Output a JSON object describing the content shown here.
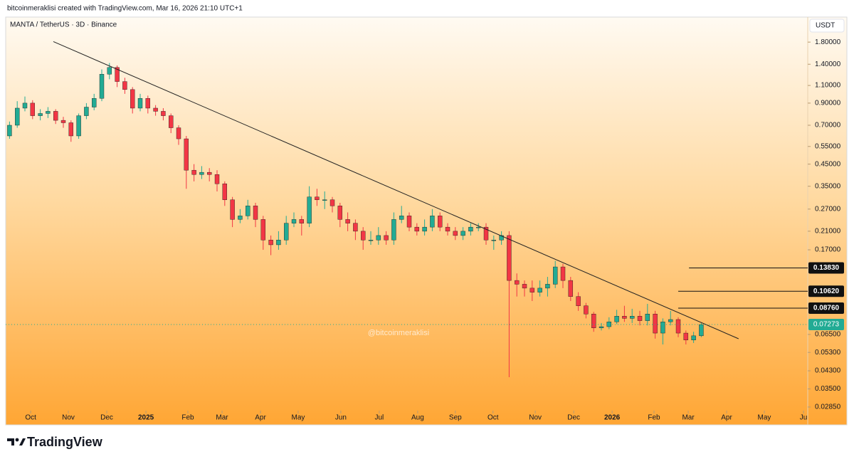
{
  "chart_data": {
    "type": "candlestick",
    "credit": "bitcoinmeraklisi created with TradingView.com, Mar 16, 2026 21:10 UTC+1",
    "title": "MANTA / TetherUS · 3D · Binance",
    "currency": "USDT",
    "watermark": "@bitcoinmeraklisi",
    "brand": "TradingView",
    "log_scale": true,
    "up_color": "#22ab94",
    "down_color": "#f23645",
    "ylim": [
      0.0278,
      1.97
    ],
    "yticks": [
      {
        "value": 1.8,
        "label": "1.80000"
      },
      {
        "value": 1.4,
        "label": "1.40000"
      },
      {
        "value": 1.1,
        "label": "1.10000"
      },
      {
        "value": 0.9,
        "label": "0.90000"
      },
      {
        "value": 0.7,
        "label": "0.70000"
      },
      {
        "value": 0.55,
        "label": "0.55000"
      },
      {
        "value": 0.45,
        "label": "0.45000"
      },
      {
        "value": 0.35,
        "label": "0.35000"
      },
      {
        "value": 0.27,
        "label": "0.27000"
      },
      {
        "value": 0.21,
        "label": "0.21000"
      },
      {
        "value": 0.17,
        "label": "0.17000"
      },
      {
        "value": 0.065,
        "label": "0.06500"
      },
      {
        "value": 0.053,
        "label": "0.05300"
      },
      {
        "value": 0.043,
        "label": "0.04300"
      },
      {
        "value": 0.035,
        "label": "0.03500"
      },
      {
        "value": 0.0285,
        "label": "0.02850"
      }
    ],
    "xlim": [
      0,
      208.7
    ],
    "xticks": [
      {
        "value": 6.5,
        "label": "Oct"
      },
      {
        "value": 16.3,
        "label": "Nov"
      },
      {
        "value": 26.3,
        "label": "Dec"
      },
      {
        "value": 36.5,
        "label": "2025"
      },
      {
        "value": 47.4,
        "label": "Feb"
      },
      {
        "value": 56.3,
        "label": "Mar"
      },
      {
        "value": 66.3,
        "label": "Apr"
      },
      {
        "value": 76.1,
        "label": "May"
      },
      {
        "value": 87.2,
        "label": "Jun"
      },
      {
        "value": 97.2,
        "label": "Jul"
      },
      {
        "value": 107.2,
        "label": "Aug"
      },
      {
        "value": 117,
        "label": "Sep"
      },
      {
        "value": 126.8,
        "label": "Oct"
      },
      {
        "value": 137.8,
        "label": "Nov"
      },
      {
        "value": 147.8,
        "label": "Dec"
      },
      {
        "value": 157.8,
        "label": "2026"
      },
      {
        "value": 168.7,
        "label": "Feb"
      },
      {
        "value": 177.6,
        "label": "Mar"
      },
      {
        "value": 187.6,
        "label": "Apr"
      },
      {
        "value": 197.4,
        "label": "May"
      },
      {
        "value": 207.6,
        "label": "Ju"
      }
    ],
    "x": [
      1,
      3,
      5,
      7,
      9,
      11,
      13,
      15,
      17,
      19,
      21,
      23,
      25,
      27,
      29,
      31,
      33,
      35,
      37,
      39,
      41,
      43,
      45,
      47,
      49,
      51,
      53,
      55,
      57,
      59,
      61,
      63,
      65,
      67,
      69,
      71,
      73,
      75,
      77,
      79,
      81,
      83,
      85,
      87,
      89,
      91,
      93,
      95,
      97,
      99,
      101,
      103,
      105,
      107,
      109,
      111,
      113,
      115,
      117,
      119,
      121,
      123,
      125,
      127,
      129,
      131,
      133,
      135,
      137,
      139,
      141,
      143,
      145,
      147,
      149,
      151,
      153,
      155,
      157,
      159,
      161,
      163,
      165,
      167,
      169,
      171,
      173,
      175,
      177,
      179,
      181
    ],
    "open": [
      0.62,
      0.7,
      0.85,
      0.9,
      0.78,
      0.8,
      0.82,
      0.74,
      0.72,
      0.62,
      0.78,
      0.86,
      0.95,
      1.25,
      1.35,
      1.15,
      1.05,
      0.85,
      0.95,
      0.85,
      0.82,
      0.78,
      0.68,
      0.6,
      0.42,
      0.4,
      0.41,
      0.4,
      0.36,
      0.3,
      0.24,
      0.25,
      0.28,
      0.24,
      0.19,
      0.18,
      0.19,
      0.23,
      0.24,
      0.23,
      0.31,
      0.3,
      0.3,
      0.28,
      0.24,
      0.23,
      0.21,
      0.19,
      0.19,
      0.2,
      0.19,
      0.24,
      0.25,
      0.22,
      0.21,
      0.22,
      0.25,
      0.22,
      0.21,
      0.2,
      0.21,
      0.22,
      0.22,
      0.19,
      0.19,
      0.2,
      0.12,
      0.115,
      0.11,
      0.105,
      0.11,
      0.115,
      0.14,
      0.12,
      0.1,
      0.09,
      0.082,
      0.07,
      0.071,
      0.075,
      0.08,
      0.078,
      0.08,
      0.076,
      0.082,
      0.066,
      0.075,
      0.077,
      0.066,
      0.061,
      0.064
    ],
    "high": [
      0.73,
      0.92,
      0.97,
      0.93,
      0.84,
      0.86,
      0.84,
      0.77,
      0.74,
      0.8,
      0.9,
      1.0,
      1.32,
      1.42,
      1.38,
      1.2,
      1.08,
      1.0,
      0.98,
      0.88,
      0.85,
      0.8,
      0.7,
      0.62,
      0.45,
      0.44,
      0.43,
      0.42,
      0.37,
      0.31,
      0.27,
      0.3,
      0.29,
      0.25,
      0.2,
      0.21,
      0.25,
      0.26,
      0.25,
      0.35,
      0.34,
      0.33,
      0.31,
      0.29,
      0.26,
      0.24,
      0.22,
      0.21,
      0.22,
      0.21,
      0.26,
      0.28,
      0.26,
      0.23,
      0.24,
      0.27,
      0.26,
      0.23,
      0.22,
      0.22,
      0.23,
      0.23,
      0.23,
      0.2,
      0.21,
      0.21,
      0.13,
      0.12,
      0.12,
      0.12,
      0.125,
      0.15,
      0.145,
      0.125,
      0.105,
      0.093,
      0.084,
      0.074,
      0.079,
      0.086,
      0.09,
      0.087,
      0.085,
      0.092,
      0.085,
      0.078,
      0.085,
      0.079,
      0.068,
      0.067,
      0.074
    ],
    "low": [
      0.6,
      0.68,
      0.82,
      0.75,
      0.74,
      0.76,
      0.71,
      0.68,
      0.58,
      0.6,
      0.75,
      0.83,
      0.92,
      1.18,
      1.08,
      1.0,
      0.8,
      0.82,
      0.8,
      0.78,
      0.74,
      0.64,
      0.56,
      0.34,
      0.37,
      0.38,
      0.37,
      0.33,
      0.28,
      0.22,
      0.23,
      0.24,
      0.22,
      0.17,
      0.16,
      0.17,
      0.18,
      0.22,
      0.2,
      0.22,
      0.28,
      0.27,
      0.26,
      0.22,
      0.21,
      0.19,
      0.17,
      0.18,
      0.18,
      0.18,
      0.18,
      0.23,
      0.21,
      0.2,
      0.2,
      0.21,
      0.21,
      0.2,
      0.19,
      0.19,
      0.2,
      0.21,
      0.18,
      0.17,
      0.18,
      0.04,
      0.1,
      0.1,
      0.095,
      0.1,
      0.1,
      0.11,
      0.11,
      0.095,
      0.085,
      0.078,
      0.067,
      0.068,
      0.069,
      0.073,
      0.075,
      0.074,
      0.072,
      0.072,
      0.062,
      0.058,
      0.072,
      0.063,
      0.058,
      0.059,
      0.063
    ],
    "close": [
      0.7,
      0.85,
      0.9,
      0.78,
      0.8,
      0.82,
      0.74,
      0.72,
      0.62,
      0.78,
      0.86,
      0.95,
      1.25,
      1.35,
      1.15,
      1.05,
      0.85,
      0.95,
      0.85,
      0.82,
      0.78,
      0.68,
      0.6,
      0.42,
      0.4,
      0.41,
      0.4,
      0.36,
      0.3,
      0.24,
      0.25,
      0.28,
      0.24,
      0.19,
      0.18,
      0.19,
      0.23,
      0.24,
      0.23,
      0.31,
      0.3,
      0.3,
      0.28,
      0.24,
      0.23,
      0.21,
      0.19,
      0.19,
      0.2,
      0.19,
      0.24,
      0.25,
      0.22,
      0.21,
      0.22,
      0.25,
      0.22,
      0.21,
      0.2,
      0.21,
      0.22,
      0.22,
      0.19,
      0.19,
      0.2,
      0.12,
      0.115,
      0.11,
      0.105,
      0.11,
      0.115,
      0.14,
      0.12,
      0.1,
      0.09,
      0.082,
      0.07,
      0.071,
      0.075,
      0.08,
      0.078,
      0.08,
      0.076,
      0.082,
      0.066,
      0.075,
      0.077,
      0.066,
      0.061,
      0.064,
      0.0727
    ],
    "trendline": {
      "x": [
        12.4,
        190.7
      ],
      "y": [
        1.81,
        0.0619
      ]
    },
    "levels": [
      {
        "value": 0.1383,
        "label": "0.13830",
        "from": 177.8
      },
      {
        "value": 0.1062,
        "label": "0.10620",
        "from": 175
      },
      {
        "value": 0.0876,
        "label": "0.08760",
        "from": 175
      }
    ],
    "last_price": {
      "value": 0.07273,
      "label": "0.07273",
      "color": "#22ab94"
    }
  }
}
